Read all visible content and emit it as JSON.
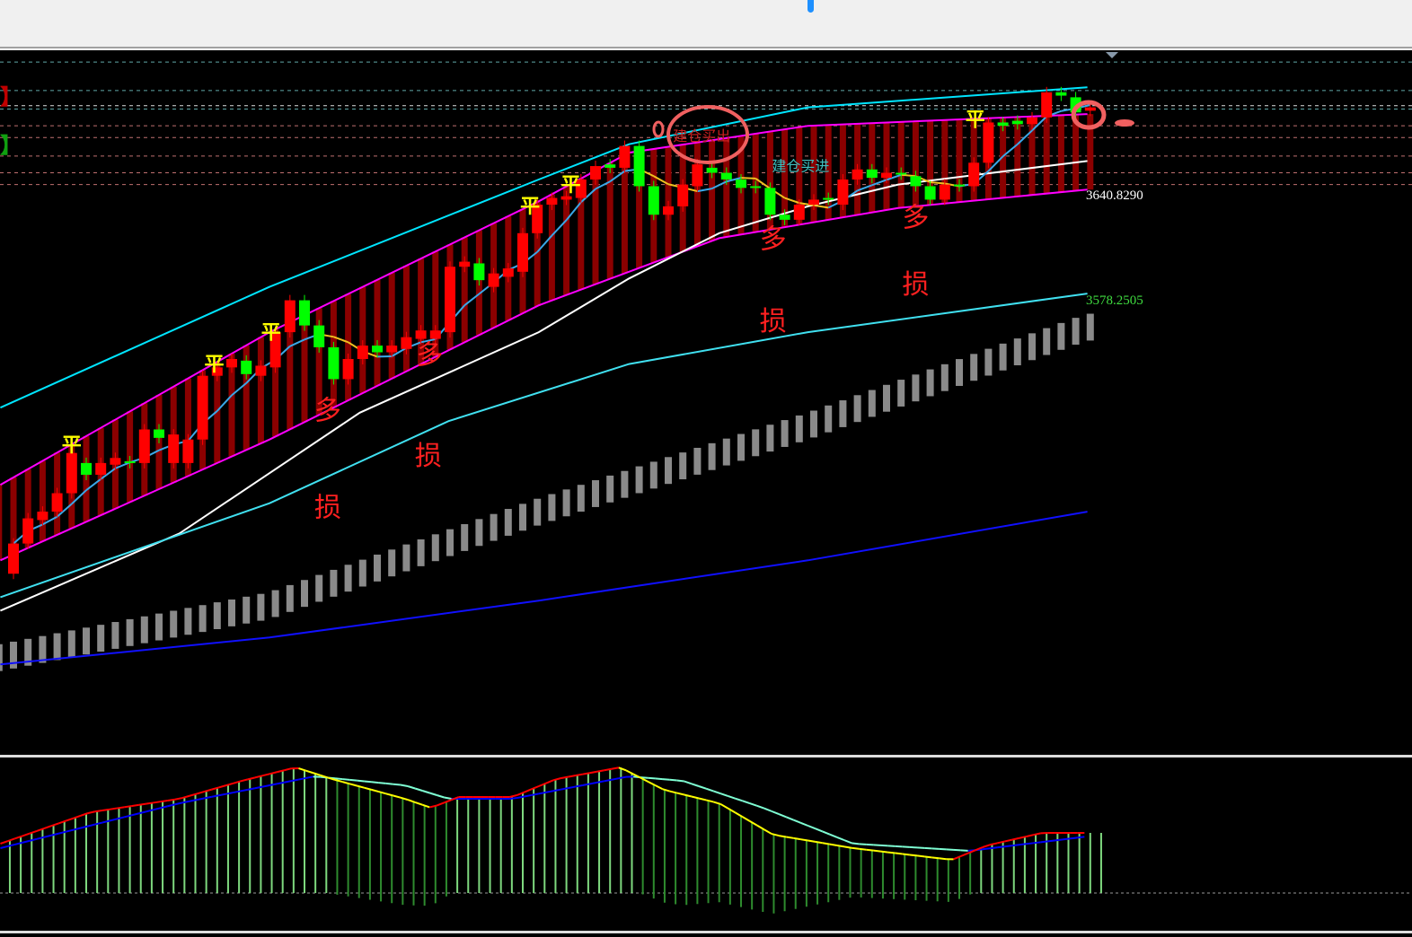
{
  "legend": {
    "red_bracket": "】",
    "green_bracket": "】"
  },
  "price_labels": {
    "upper": "3640.8290",
    "lower": "3578.2505"
  },
  "colors": {
    "up": "#ff0000",
    "down": "#00ff00",
    "channel": "#ff00ff",
    "channel_fill": "#8b0000",
    "outer_band": "#00e5ff",
    "ma_white": "#ffffff",
    "ma_cyan": "#40e0f0",
    "ma_blue": "#1010ff",
    "gray_band": "#8a8a8a",
    "annotation": "#ff2020",
    "flat_marker": "#ffff00",
    "macd_rise": "#ff0000",
    "macd_fall": "#ffff00",
    "signal_rise": "#0000ff",
    "signal_fall": "#7fffd4",
    "hist_pos": "#7ed87e",
    "hist_neg": "#2e8b2e"
  },
  "chart_data": [
    {
      "type": "candlestick",
      "title": "",
      "y_ticks": [
        3640.829,
        3578.2505
      ],
      "candles_open_close": [
        [
          3416,
          3434
        ],
        [
          3434,
          3449
        ],
        [
          3448,
          3453
        ],
        [
          3453,
          3464
        ],
        [
          3464,
          3488
        ],
        [
          3482,
          3475
        ],
        [
          3475,
          3482
        ],
        [
          3481,
          3485
        ],
        [
          3483,
          3482
        ],
        [
          3482,
          3502
        ],
        [
          3502,
          3497
        ],
        [
          3482,
          3499
        ],
        [
          3482,
          3496
        ],
        [
          3496,
          3534
        ],
        [
          3534,
          3539
        ],
        [
          3539,
          3544
        ],
        [
          3543,
          3535
        ],
        [
          3534,
          3540
        ],
        [
          3539,
          3560
        ],
        [
          3560,
          3579
        ],
        [
          3579,
          3564
        ],
        [
          3564,
          3551
        ],
        [
          3551,
          3532
        ],
        [
          3532,
          3544
        ],
        [
          3544,
          3552
        ],
        [
          3552,
          3548
        ],
        [
          3548,
          3552
        ],
        [
          3550,
          3557
        ],
        [
          3556,
          3561
        ],
        [
          3556,
          3561
        ],
        [
          3560,
          3599
        ],
        [
          3599,
          3602
        ],
        [
          3601,
          3591
        ],
        [
          3587,
          3595
        ],
        [
          3593,
          3598
        ],
        [
          3596,
          3619
        ],
        [
          3619,
          3636
        ],
        [
          3636,
          3640
        ],
        [
          3639,
          3641
        ],
        [
          3640,
          3651
        ],
        [
          3651,
          3659
        ],
        [
          3660,
          3658
        ],
        [
          3658,
          3671
        ],
        [
          3671,
          3647
        ],
        [
          3647,
          3630
        ],
        [
          3630,
          3635
        ],
        [
          3635,
          3648
        ],
        [
          3647,
          3660
        ],
        [
          3658,
          3655
        ],
        [
          3655,
          3651
        ],
        [
          3651,
          3646
        ],
        [
          3647,
          3646
        ],
        [
          3646,
          3630
        ],
        [
          3630,
          3627
        ],
        [
          3627,
          3636
        ],
        [
          3636,
          3639
        ],
        [
          3640,
          3639
        ],
        [
          3636,
          3651
        ],
        [
          3651,
          3657
        ],
        [
          3657,
          3652
        ],
        [
          3652,
          3655
        ],
        [
          3655,
          3654
        ],
        [
          3653,
          3647
        ],
        [
          3647,
          3639
        ],
        [
          3639,
          3648
        ],
        [
          3648,
          3647
        ],
        [
          3647,
          3661
        ],
        [
          3661,
          3685
        ],
        [
          3685,
          3683
        ],
        [
          3686,
          3684
        ],
        [
          3684,
          3688
        ],
        [
          3688,
          3703
        ],
        [
          3703,
          3701
        ],
        [
          3700,
          3691
        ],
        [
          3692,
          3694
        ]
      ],
      "lines": [
        {
          "role": "channel-upper",
          "points": [
            [
              -0.9,
              3469
            ],
            [
              17.6,
              3560
            ],
            [
              36.1,
              3638
            ],
            [
              42.3,
              3667
            ],
            [
              54.6,
              3683
            ],
            [
              73.8,
              3690
            ]
          ]
        },
        {
          "role": "channel-lower",
          "points": [
            [
              -0.9,
              3424
            ],
            [
              17.6,
              3496
            ],
            [
              36.1,
              3576
            ],
            [
              48.5,
              3616
            ],
            [
              60.8,
              3634
            ],
            [
              73.8,
              3645
            ]
          ]
        },
        {
          "role": "outer-band",
          "points": [
            [
              -0.9,
              3515
            ],
            [
              17.6,
              3587
            ],
            [
              36.1,
              3651
            ],
            [
              42.3,
              3672
            ],
            [
              54.6,
              3694
            ],
            [
              73.8,
              3706
            ]
          ]
        },
        {
          "role": "ma-white",
          "points": [
            [
              -0.9,
              3394
            ],
            [
              11.4,
              3440
            ],
            [
              23.8,
              3512
            ],
            [
              36.1,
              3560
            ],
            [
              42.3,
              3592
            ],
            [
              48.5,
              3619
            ],
            [
              54.6,
              3635
            ],
            [
              60.8,
              3648
            ],
            [
              73.8,
              3662
            ]
          ]
        },
        {
          "role": "ma-cyan",
          "points": [
            [
              -0.9,
              3402
            ],
            [
              17.6,
              3458
            ],
            [
              29.9,
              3507
            ],
            [
              42.3,
              3541
            ],
            [
              54.6,
              3560
            ],
            [
              73.8,
              3583
            ]
          ]
        },
        {
          "role": "ma-blue",
          "points": [
            [
              -0.9,
              3362
            ],
            [
              17.6,
              3378
            ],
            [
              36.1,
              3400
            ],
            [
              54.6,
              3424
            ],
            [
              73.8,
              3453
            ]
          ]
        },
        {
          "role": "gray-band-top",
          "points": [
            [
              -0.9,
              3374
            ],
            [
              17.6,
              3405
            ],
            [
              36.1,
              3461
            ],
            [
              54.6,
              3512
            ],
            [
              73.8,
              3571
            ]
          ]
        }
      ],
      "gray_band_width": 16,
      "dashed_levels": [
        {
          "price": 3731,
          "color": "#5fa8a8"
        },
        {
          "price": 3721,
          "color": "#5fa8a8"
        },
        {
          "price": 3704,
          "color": "#5fa8a8"
        },
        {
          "price": 3695,
          "color": "#dddddd"
        },
        {
          "price": 3693,
          "color": "#5fa8a8"
        },
        {
          "price": 3683,
          "color": "#c07070"
        },
        {
          "price": 3676,
          "color": "#c07070"
        },
        {
          "price": 3665,
          "color": "#c07070"
        },
        {
          "price": 3655,
          "color": "#c07070"
        },
        {
          "price": 3648,
          "color": "#c07070"
        }
      ],
      "annotations": [
        {
          "text": "多",
          "index": 21.6,
          "price": 3508
        },
        {
          "text": "多",
          "index": 28.6,
          "price": 3541
        },
        {
          "text": "多",
          "index": 52.2,
          "price": 3610
        },
        {
          "text": "多",
          "index": 62.0,
          "price": 3623
        },
        {
          "text": "损",
          "index": 21.6,
          "price": 3450
        },
        {
          "text": "损",
          "index": 28.5,
          "price": 3481
        },
        {
          "text": "损",
          "index": 52.2,
          "price": 3561
        },
        {
          "text": "损",
          "index": 62.0,
          "price": 3583
        }
      ],
      "flat_markers": {
        "text": "平",
        "indices": [
          4,
          13.8,
          17.7,
          35.5,
          38.3,
          66.1
        ]
      },
      "signal_labels": [
        {
          "text": "建仓买出",
          "index": 47.3,
          "price": 3674,
          "color": "#cc2020"
        },
        {
          "text": "建仓买进",
          "index": 54.1,
          "price": 3656,
          "color": "#40c0c0"
        }
      ]
    },
    {
      "type": "macd",
      "fast": [
        [
          -0.9,
          5.5
        ],
        [
          5.3,
          9
        ],
        [
          11.4,
          10.5
        ],
        [
          15.7,
          12.5
        ],
        [
          19.4,
          14
        ],
        [
          21.9,
          12.7
        ],
        [
          26.9,
          10.5
        ],
        [
          28.7,
          9.5
        ],
        [
          30.6,
          10.7
        ],
        [
          34.3,
          10.7
        ],
        [
          37.3,
          12.7
        ],
        [
          41.7,
          14
        ],
        [
          44.7,
          11.5
        ],
        [
          48.5,
          10
        ],
        [
          52.2,
          6.5
        ],
        [
          57.7,
          5
        ],
        [
          64.5,
          3.7
        ],
        [
          66.9,
          5.3
        ],
        [
          70.7,
          6.7
        ],
        [
          73.8,
          6.7
        ]
      ],
      "slow": [
        [
          -0.9,
          5
        ],
        [
          11.4,
          10
        ],
        [
          20.7,
          13
        ],
        [
          26.9,
          12
        ],
        [
          29.9,
          10.5
        ],
        [
          34.3,
          10.5
        ],
        [
          42.3,
          13
        ],
        [
          46,
          12.5
        ],
        [
          51.5,
          9.5
        ],
        [
          57.7,
          5.5
        ],
        [
          65.7,
          4.7
        ],
        [
          73.8,
          6.3
        ]
      ]
    }
  ]
}
